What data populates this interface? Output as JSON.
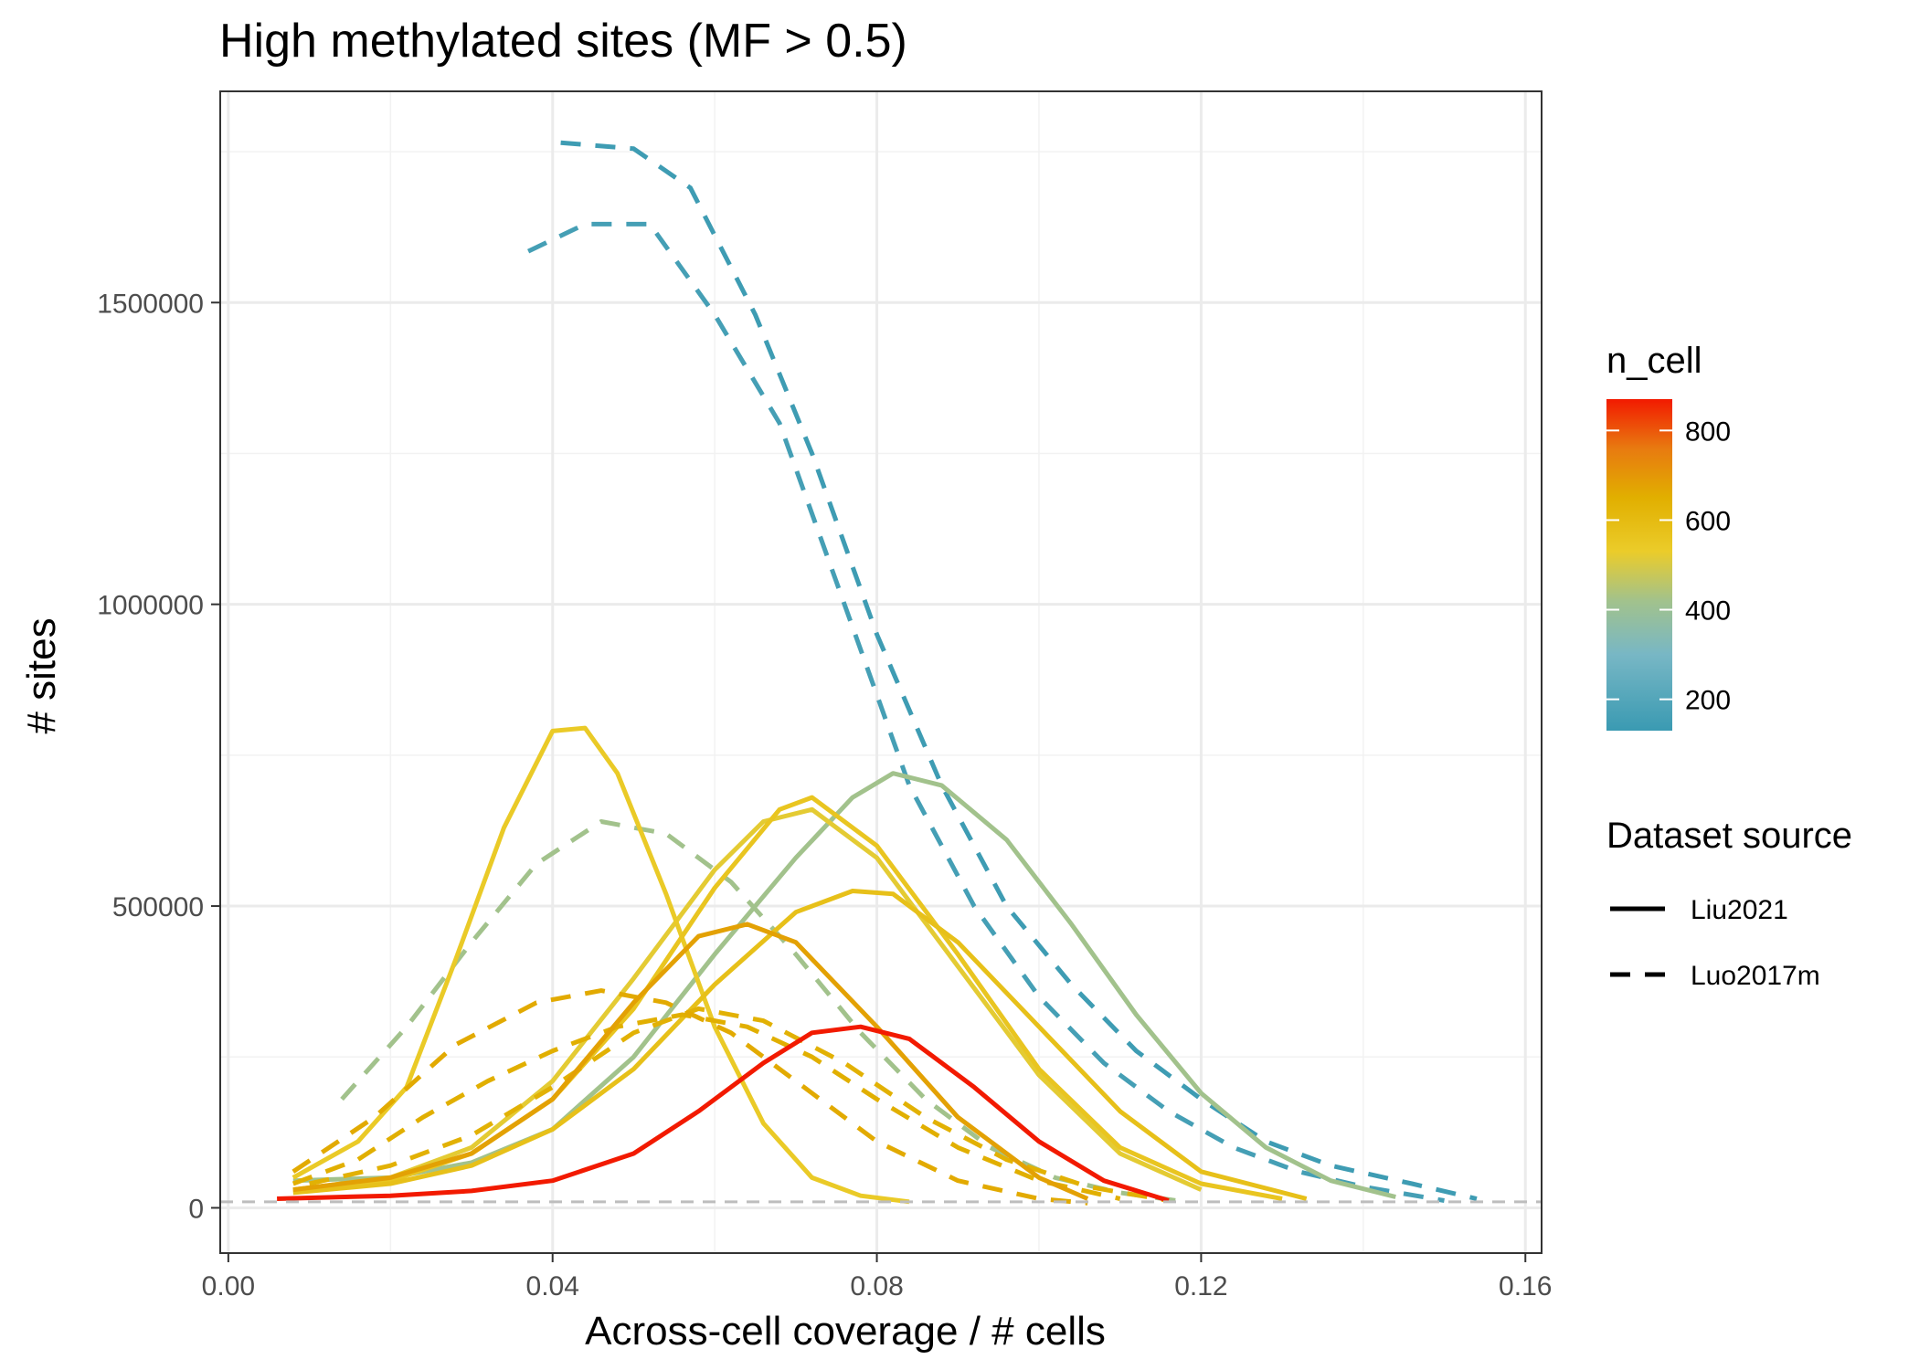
{
  "chart_data": {
    "type": "line",
    "title": "High methylated sites (MF > 0.5)",
    "xlabel": "Across-cell coverage / # cells",
    "ylabel": "# sites",
    "xlim": [
      -0.001,
      0.162
    ],
    "ylim": [
      -75000,
      1850000
    ],
    "x_ticks": [
      0.0,
      0.04,
      0.08,
      0.12,
      0.16
    ],
    "x_tick_labels": [
      "0.00",
      "0.04",
      "0.08",
      "0.12",
      "0.16"
    ],
    "y_ticks": [
      0,
      500000,
      1000000,
      1500000
    ],
    "y_tick_labels": [
      "0",
      "500000",
      "1000000",
      "1500000"
    ],
    "grid": true,
    "reference_line": {
      "y": 10000,
      "style": "dashed",
      "color": "#bdbdbd"
    },
    "color_scale": {
      "title": "n_cell",
      "range": [
        130,
        870
      ],
      "ticks": [
        200,
        400,
        600,
        800
      ],
      "tick_labels": [
        "200",
        "400",
        "600",
        "800"
      ],
      "stops": [
        {
          "value": 130,
          "color": "#3a9ab2"
        },
        {
          "value": 300,
          "color": "#78b7c5"
        },
        {
          "value": 420,
          "color": "#a2c28c"
        },
        {
          "value": 530,
          "color": "#ebcc2a"
        },
        {
          "value": 650,
          "color": "#e1af00"
        },
        {
          "value": 760,
          "color": "#e87a10"
        },
        {
          "value": 870,
          "color": "#f21a00"
        }
      ]
    },
    "linetype_legend": {
      "title": "Dataset source",
      "entries": [
        {
          "label": "Liu2021",
          "dash": "solid"
        },
        {
          "label": "Luo2017m",
          "dash": "dashed"
        }
      ]
    },
    "series": [
      {
        "source": "Luo2017m",
        "n_cell": 140,
        "x": [
          0.041,
          0.05,
          0.057,
          0.065,
          0.072,
          0.08,
          0.088,
          0.096,
          0.104,
          0.112,
          0.12,
          0.128,
          0.136,
          0.146,
          0.154
        ],
        "y": [
          1765000,
          1755000,
          1690000,
          1480000,
          1250000,
          950000,
          700000,
          500000,
          370000,
          260000,
          180000,
          110000,
          70000,
          40000,
          15000
        ]
      },
      {
        "source": "Luo2017m",
        "n_cell": 160,
        "x": [
          0.037,
          0.044,
          0.052,
          0.06,
          0.068,
          0.076,
          0.084,
          0.092,
          0.1,
          0.108,
          0.116,
          0.124,
          0.132,
          0.14,
          0.15
        ],
        "y": [
          1585000,
          1630000,
          1630000,
          1480000,
          1300000,
          1000000,
          700000,
          500000,
          350000,
          240000,
          160000,
          100000,
          60000,
          35000,
          12000
        ]
      },
      {
        "source": "Liu2021",
        "n_cell": 420,
        "x": [
          0.008,
          0.02,
          0.03,
          0.04,
          0.05,
          0.06,
          0.07,
          0.077,
          0.082,
          0.088,
          0.096,
          0.104,
          0.112,
          0.12,
          0.128,
          0.136,
          0.144
        ],
        "y": [
          45000,
          50000,
          75000,
          130000,
          250000,
          420000,
          580000,
          680000,
          720000,
          700000,
          610000,
          470000,
          320000,
          190000,
          100000,
          45000,
          18000
        ]
      },
      {
        "source": "Luo2017m",
        "n_cell": 420,
        "x": [
          0.014,
          0.022,
          0.03,
          0.038,
          0.046,
          0.054,
          0.062,
          0.07,
          0.078,
          0.086,
          0.094,
          0.102,
          0.11,
          0.118
        ],
        "y": [
          180000,
          300000,
          440000,
          570000,
          640000,
          620000,
          540000,
          420000,
          290000,
          180000,
          100000,
          50000,
          25000,
          10000
        ]
      },
      {
        "source": "Liu2021",
        "n_cell": 540,
        "x": [
          0.008,
          0.016,
          0.022,
          0.028,
          0.034,
          0.04,
          0.044,
          0.048,
          0.054,
          0.06,
          0.066,
          0.072,
          0.078,
          0.084
        ],
        "y": [
          50000,
          110000,
          200000,
          410000,
          630000,
          790000,
          795000,
          720000,
          520000,
          300000,
          140000,
          50000,
          20000,
          10000
        ]
      },
      {
        "source": "Liu2021",
        "n_cell": 560,
        "x": [
          0.008,
          0.02,
          0.03,
          0.04,
          0.05,
          0.06,
          0.068,
          0.072,
          0.08,
          0.09,
          0.1,
          0.11,
          0.12,
          0.13
        ],
        "y": [
          30000,
          45000,
          90000,
          180000,
          330000,
          530000,
          660000,
          680000,
          600000,
          420000,
          230000,
          100000,
          40000,
          15000
        ]
      },
      {
        "source": "Liu2021",
        "n_cell": 520,
        "x": [
          0.008,
          0.02,
          0.03,
          0.04,
          0.05,
          0.06,
          0.066,
          0.072,
          0.08,
          0.09,
          0.1,
          0.11,
          0.12
        ],
        "y": [
          30000,
          50000,
          100000,
          210000,
          380000,
          560000,
          640000,
          660000,
          580000,
          400000,
          220000,
          90000,
          30000
        ]
      },
      {
        "source": "Liu2021",
        "n_cell": 580,
        "x": [
          0.008,
          0.02,
          0.03,
          0.04,
          0.05,
          0.06,
          0.07,
          0.077,
          0.082,
          0.09,
          0.1,
          0.11,
          0.12,
          0.133
        ],
        "y": [
          25000,
          40000,
          70000,
          130000,
          230000,
          370000,
          490000,
          525000,
          520000,
          440000,
          300000,
          160000,
          60000,
          15000
        ]
      },
      {
        "source": "Liu2021",
        "n_cell": 680,
        "x": [
          0.008,
          0.02,
          0.03,
          0.04,
          0.05,
          0.058,
          0.064,
          0.07,
          0.08,
          0.09,
          0.1,
          0.106
        ],
        "y": [
          30000,
          50000,
          90000,
          180000,
          340000,
          450000,
          470000,
          440000,
          300000,
          150000,
          50000,
          15000
        ]
      },
      {
        "source": "Luo2017m",
        "n_cell": 660,
        "x": [
          0.008,
          0.018,
          0.028,
          0.038,
          0.046,
          0.054,
          0.062,
          0.07,
          0.08,
          0.09,
          0.1,
          0.106
        ],
        "y": [
          60000,
          150000,
          270000,
          340000,
          360000,
          340000,
          290000,
          210000,
          110000,
          45000,
          15000,
          8000
        ]
      },
      {
        "source": "Luo2017m",
        "n_cell": 650,
        "x": [
          0.008,
          0.016,
          0.024,
          0.032,
          0.04,
          0.048,
          0.056,
          0.064,
          0.072,
          0.08,
          0.09,
          0.1,
          0.11
        ],
        "y": [
          40000,
          80000,
          150000,
          210000,
          260000,
          300000,
          320000,
          300000,
          250000,
          180000,
          100000,
          45000,
          15000
        ]
      },
      {
        "source": "Luo2017m",
        "n_cell": 640,
        "x": [
          0.01,
          0.02,
          0.03,
          0.04,
          0.05,
          0.058,
          0.066,
          0.076,
          0.086,
          0.096,
          0.106,
          0.116
        ],
        "y": [
          40000,
          70000,
          120000,
          200000,
          290000,
          330000,
          310000,
          240000,
          150000,
          80000,
          35000,
          12000
        ]
      },
      {
        "source": "Liu2021",
        "n_cell": 870,
        "x": [
          0.006,
          0.02,
          0.03,
          0.04,
          0.05,
          0.058,
          0.066,
          0.072,
          0.078,
          0.084,
          0.092,
          0.1,
          0.108,
          0.116
        ],
        "y": [
          15000,
          20000,
          28000,
          45000,
          90000,
          160000,
          240000,
          290000,
          300000,
          280000,
          200000,
          110000,
          45000,
          12000
        ]
      }
    ]
  }
}
